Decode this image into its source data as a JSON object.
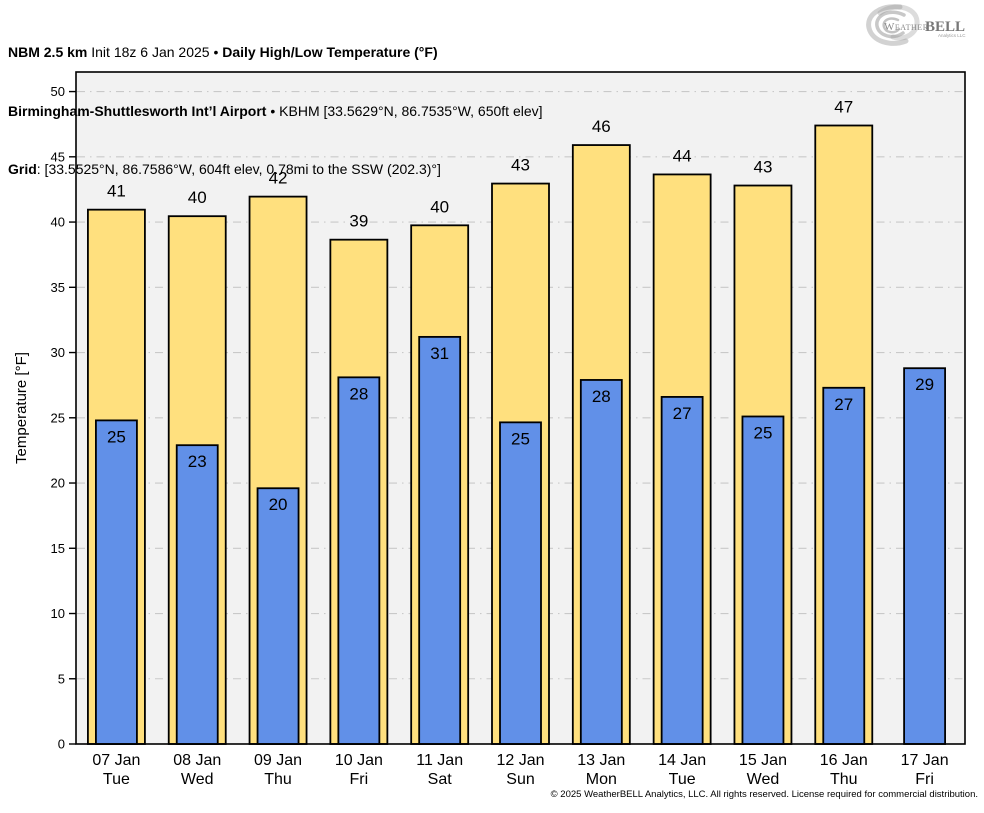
{
  "header": {
    "line1_model": "NBM 2.5 km",
    "line1_init": " Init 18z 6 Jan 2025 • ",
    "line1_title": "Daily High/Low Temperature (°F)",
    "line2_station": "Birmingham-Shuttlesworth Int’l Airport",
    "line2_details": " • KBHM [33.5629°N, 86.7535°W, 650ft elev]",
    "line3_label": "Grid",
    "line3_details": ": [33.5525°N, 86.7586°W, 604ft elev, 0.78mi to the SSW (202.3)°]"
  },
  "logo": {
    "word1": "Weather",
    "word2": "BELL",
    "subtitle": "Analytics LLC"
  },
  "footer": {
    "copyright": "© 2025 WeatherBELL Analytics, LLC. All rights reserved. License required for commercial distribution."
  },
  "chart_data": {
    "type": "bar",
    "title": "Daily High/Low Temperature (°F)",
    "xlabel": "",
    "ylabel": "Temperature [°F]",
    "ylim": [
      0,
      51.5
    ],
    "yticks": [
      0,
      5,
      10,
      15,
      20,
      25,
      30,
      35,
      40,
      45,
      50
    ],
    "grid": "horizontal dash-dot",
    "legend": "none",
    "categories": [
      "07 Jan",
      "08 Jan",
      "09 Jan",
      "10 Jan",
      "11 Jan",
      "12 Jan",
      "13 Jan",
      "14 Jan",
      "15 Jan",
      "16 Jan",
      "17 Jan"
    ],
    "weekdays": [
      "Tue",
      "Wed",
      "Thu",
      "Fri",
      "Sat",
      "Sun",
      "Mon",
      "Tue",
      "Wed",
      "Thu",
      "Fri"
    ],
    "series": [
      {
        "name": "High",
        "color": "#FFE07E",
        "values": [
          41,
          40,
          42,
          39,
          40,
          43,
          46,
          44,
          43,
          47,
          null
        ],
        "bar_tops": [
          40.95,
          40.45,
          41.95,
          38.65,
          39.75,
          42.95,
          45.9,
          43.65,
          42.8,
          47.4,
          null
        ]
      },
      {
        "name": "Low",
        "color": "#6190E8",
        "values": [
          25,
          23,
          20,
          28,
          31,
          25,
          28,
          27,
          25,
          27,
          29
        ],
        "bar_tops": [
          24.8,
          22.9,
          19.6,
          28.1,
          31.2,
          24.65,
          27.9,
          26.6,
          25.1,
          27.3,
          28.8
        ]
      }
    ],
    "colors": {
      "plot_bg": "#F2F2F2",
      "grid": "#C9C9C9",
      "bar_edge": "#000000",
      "frame": "#000000",
      "text": "#000000"
    }
  }
}
